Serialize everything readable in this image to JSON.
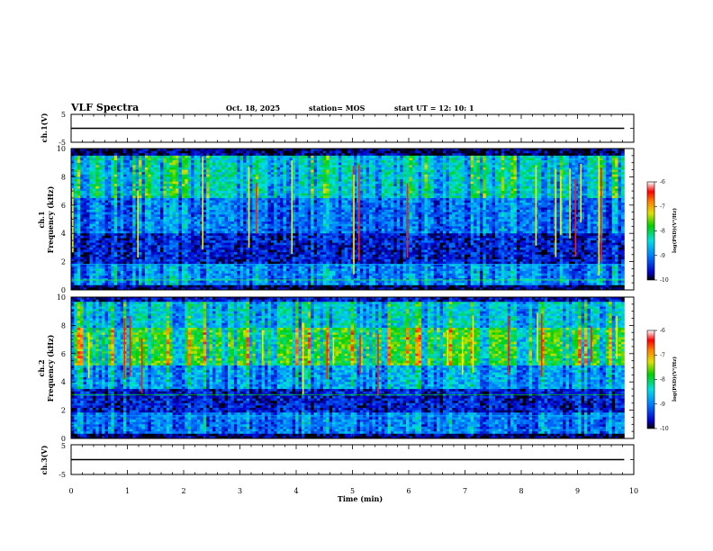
{
  "header": {
    "title": "VLF Spectra",
    "date": "Oct. 18, 2025",
    "station": "station= MOS",
    "start": "start  UT =   12: 10: 1"
  },
  "chart_data": [
    {
      "type": "line",
      "id": "ch1-waveform",
      "ylabel": "ch.1(V)",
      "ylim": [
        -5,
        5
      ],
      "yticks": [
        "5",
        "-5"
      ],
      "x": [
        0,
        10
      ],
      "values": [
        0,
        0
      ]
    },
    {
      "type": "heatmap",
      "id": "ch1-spectrogram",
      "ylabel": "ch.1\nFrequency (kHz)",
      "ylabel_lines": [
        "ch.1",
        "Frequency (kHz)"
      ],
      "ylim": [
        0,
        10
      ],
      "yticks": [
        "0",
        "2",
        "4",
        "6",
        "8",
        "10"
      ],
      "data_end_min": 9.83,
      "colorbar": {
        "label": "log(PSD)(V²/Hz)",
        "range": [
          -10,
          -6
        ],
        "ticks": [
          "-6",
          "-7",
          "-8",
          "-9",
          "-10"
        ]
      }
    },
    {
      "type": "heatmap",
      "id": "ch2-spectrogram",
      "ylabel": "ch.2\nFrequency (kHz)",
      "ylabel_lines": [
        "ch.2",
        "Frequency (kHz)"
      ],
      "ylim": [
        0,
        10
      ],
      "yticks": [
        "0",
        "2",
        "4",
        "6",
        "8",
        "10"
      ],
      "data_end_min": 9.83,
      "colorbar": {
        "label": "log(PSD)(V²/Hz)",
        "range": [
          -10,
          -6
        ],
        "ticks": [
          "-6",
          "-7",
          "-8",
          "-9",
          "-10"
        ]
      }
    },
    {
      "type": "line",
      "id": "ch3-waveform",
      "ylabel": "ch.3(V)",
      "ylim": [
        -5,
        5
      ],
      "yticks": [
        "5",
        "-5"
      ],
      "x": [
        0,
        10
      ],
      "values": [
        0,
        0
      ]
    }
  ],
  "xaxis": {
    "label": "Time  (min)",
    "range": [
      0,
      10
    ],
    "ticks": [
      "0",
      "1",
      "2",
      "3",
      "4",
      "5",
      "6",
      "7",
      "8",
      "9",
      "10"
    ]
  }
}
